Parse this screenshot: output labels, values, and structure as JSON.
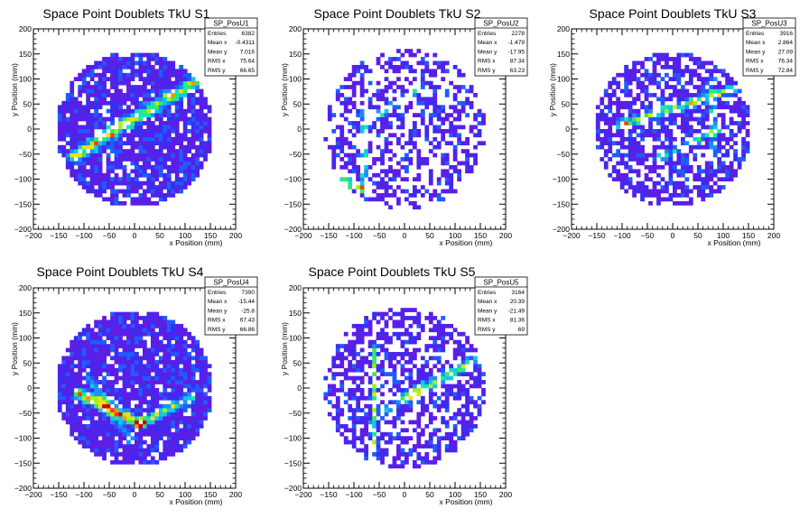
{
  "chart_data": [
    {
      "type": "heatmap",
      "title": "Space Point Doublets TkU S1",
      "xlabel": "x Position (mm)",
      "ylabel": "y Position (mm)",
      "xlim": [
        -200,
        200
      ],
      "ylim": [
        -200,
        200
      ],
      "xticks": [
        -200,
        -150,
        -100,
        -50,
        0,
        50,
        100,
        150,
        200
      ],
      "yticks": [
        -200,
        -150,
        -100,
        -50,
        0,
        50,
        100,
        150,
        200
      ],
      "stats": {
        "name": "SP_PosU1",
        "rows": [
          {
            "label": "Entries",
            "value": "6382"
          },
          {
            "label": "Mean x",
            "value": "-0.4311"
          },
          {
            "label": "Mean y",
            "value": "7.016"
          },
          {
            "label": "RMS x",
            "value": "75.64"
          },
          {
            "label": "RMS y",
            "value": "66.65"
          }
        ]
      },
      "density": {
        "radius": 155,
        "fill": 0.85,
        "bands": [
          {
            "p": [
              -120,
              -55
            ],
            "q": [
              120,
              95
            ],
            "w": 18,
            "s": 0.65
          },
          {
            "p": [
              -60,
              -10
            ],
            "q": [
              -20,
              20
            ],
            "w": 14,
            "s": 0.3
          }
        ]
      }
    },
    {
      "type": "heatmap",
      "title": "Space Point Doublets TkU S2",
      "xlabel": "x Position (mm)",
      "ylabel": "y Position (mm)",
      "xlim": [
        -200,
        200
      ],
      "ylim": [
        -200,
        200
      ],
      "xticks": [
        -200,
        -150,
        -100,
        -50,
        0,
        50,
        100,
        150,
        200
      ],
      "yticks": [
        -200,
        -150,
        -100,
        -50,
        0,
        50,
        100,
        150,
        200
      ],
      "stats": {
        "name": "SP_PosU2",
        "rows": [
          {
            "label": "Entries",
            "value": "2278"
          },
          {
            "label": "Mean x",
            "value": "-1.479"
          },
          {
            "label": "Mean y",
            "value": "-17.95"
          },
          {
            "label": "RMS x",
            "value": "87.34"
          },
          {
            "label": "RMS y",
            "value": "63.23"
          }
        ]
      },
      "density": {
        "radius": 160,
        "fill": 0.45,
        "bands": [
          {
            "p": [
              -80,
              -120
            ],
            "q": [
              -80,
              40
            ],
            "w": 10,
            "s": 0.45
          },
          {
            "p": [
              -80,
              10
            ],
            "q": [
              30,
              80
            ],
            "w": 12,
            "s": 0.4
          },
          {
            "p": [
              -130,
              -100
            ],
            "q": [
              -80,
              -120
            ],
            "w": 14,
            "s": 0.5
          }
        ]
      }
    },
    {
      "type": "heatmap",
      "title": "Space Point Doublets TkU S3",
      "xlabel": "x Position (mm)",
      "ylabel": "y Position (mm)",
      "xlim": [
        -200,
        200
      ],
      "ylim": [
        -200,
        200
      ],
      "xticks": [
        -200,
        -150,
        -100,
        -50,
        0,
        50,
        100,
        150,
        200
      ],
      "yticks": [
        -200,
        -150,
        -100,
        -50,
        0,
        50,
        100,
        150,
        200
      ],
      "stats": {
        "name": "SP_PosU3",
        "rows": [
          {
            "label": "Entries",
            "value": "3916"
          },
          {
            "label": "Mean x",
            "value": "2.864"
          },
          {
            "label": "Mean y",
            "value": "27.09"
          },
          {
            "label": "RMS x",
            "value": "76.34"
          },
          {
            "label": "RMS y",
            "value": "72.84"
          }
        ]
      },
      "density": {
        "radius": 155,
        "fill": 0.65,
        "bands": [
          {
            "p": [
              -100,
              10
            ],
            "q": [
              120,
              80
            ],
            "w": 14,
            "s": 0.55
          },
          {
            "p": [
              -30,
              -60
            ],
            "q": [
              90,
              0
            ],
            "w": 10,
            "s": 0.45
          },
          {
            "p": [
              80,
              -40
            ],
            "q": [
              80,
              100
            ],
            "w": 10,
            "s": 0.35
          }
        ]
      }
    },
    {
      "type": "heatmap",
      "title": "Space Point Doublets TkU S4",
      "xlabel": "x Position (mm)",
      "ylabel": "y Position (mm)",
      "xlim": [
        -200,
        200
      ],
      "ylim": [
        -200,
        200
      ],
      "xticks": [
        -200,
        -150,
        -100,
        -50,
        0,
        50,
        100,
        150,
        200
      ],
      "yticks": [
        -200,
        -150,
        -100,
        -50,
        0,
        50,
        100,
        150,
        200
      ],
      "stats": {
        "name": "SP_PosU4",
        "rows": [
          {
            "label": "Entries",
            "value": "7390"
          },
          {
            "label": "Mean x",
            "value": "-15.44"
          },
          {
            "label": "Mean y",
            "value": "-25.8"
          },
          {
            "label": "RMS x",
            "value": "67.43"
          },
          {
            "label": "RMS y",
            "value": "66.86"
          }
        ]
      },
      "density": {
        "radius": 155,
        "fill": 0.88,
        "bands": [
          {
            "p": [
              -110,
              -10
            ],
            "q": [
              10,
              -70
            ],
            "w": 16,
            "s": 0.85
          },
          {
            "p": [
              10,
              -70
            ],
            "q": [
              110,
              -20
            ],
            "w": 14,
            "s": 0.6
          },
          {
            "p": [
              -90,
              20
            ],
            "q": [
              -10,
              -100
            ],
            "w": 12,
            "s": 0.35
          }
        ]
      }
    },
    {
      "type": "heatmap",
      "title": "Space Point Doublets TkU S5",
      "xlabel": "x Position (mm)",
      "ylabel": "y Position (mm)",
      "xlim": [
        -200,
        200
      ],
      "ylim": [
        -200,
        200
      ],
      "xticks": [
        -200,
        -150,
        -100,
        -50,
        0,
        50,
        100,
        150,
        200
      ],
      "yticks": [
        -200,
        -150,
        -100,
        -50,
        0,
        50,
        100,
        150,
        200
      ],
      "stats": {
        "name": "SP_PosU5",
        "rows": [
          {
            "label": "Entries",
            "value": "3164"
          },
          {
            "label": "Mean x",
            "value": "20.39"
          },
          {
            "label": "Mean y",
            "value": "-21.49"
          },
          {
            "label": "RMS x",
            "value": "81.36"
          },
          {
            "label": "RMS y",
            "value": "69"
          }
        ]
      },
      "density": {
        "radius": 160,
        "fill": 0.55,
        "bands": [
          {
            "p": [
              -60,
              80
            ],
            "q": [
              -60,
              -120
            ],
            "w": 10,
            "s": 0.45
          },
          {
            "p": [
              0,
              -20
            ],
            "q": [
              150,
              60
            ],
            "w": 14,
            "s": 0.55
          },
          {
            "p": [
              -40,
              -40
            ],
            "q": [
              40,
              -10
            ],
            "w": 10,
            "s": 0.4
          }
        ]
      }
    }
  ]
}
